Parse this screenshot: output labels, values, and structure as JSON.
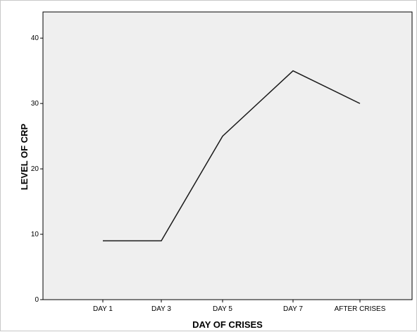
{
  "chart_data": {
    "type": "line",
    "title": "",
    "xlabel": "DAY OF CRISES",
    "ylabel": "LEVEL OF CRP",
    "categories": [
      "DAY 1",
      "DAY 3",
      "DAY 5",
      "DAY 7",
      "AFTER CRISES"
    ],
    "series": [
      {
        "values": [
          9,
          9,
          25,
          35,
          30
        ]
      }
    ],
    "ylim": [
      0,
      44
    ],
    "yticks": [
      0,
      10,
      20,
      30,
      40
    ],
    "grid": false,
    "legend": "none",
    "colors": {
      "plot_background": "#efefef",
      "line": "#1a1a1a",
      "axis": "#000000"
    }
  }
}
